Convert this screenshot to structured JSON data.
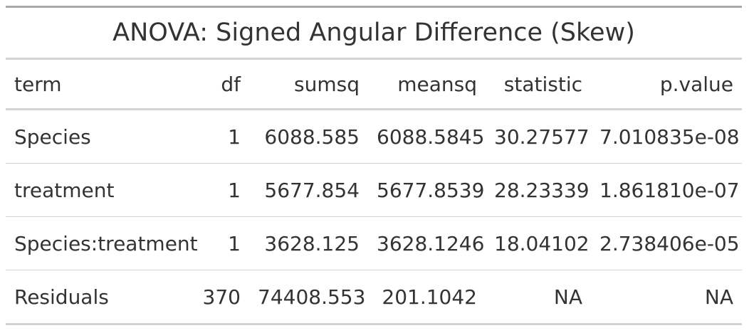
{
  "table": {
    "title": "ANOVA: Signed Angular Difference (Skew)",
    "columns": [
      "term",
      "df",
      "sumsq",
      "meansq",
      "statistic",
      "p.value"
    ],
    "rows": [
      [
        "Species",
        "1",
        "6088.585",
        "6088.5845",
        "30.27577",
        "7.010835e-08"
      ],
      [
        "treatment",
        "1",
        "5677.854",
        "5677.8539",
        "28.23339",
        "1.861810e-07"
      ],
      [
        "Species:treatment",
        "1",
        "3628.125",
        "3628.1246",
        "18.04102",
        "2.738406e-05"
      ],
      [
        "Residuals",
        "370",
        "74408.553",
        "201.1042",
        "NA",
        "NA"
      ]
    ]
  }
}
